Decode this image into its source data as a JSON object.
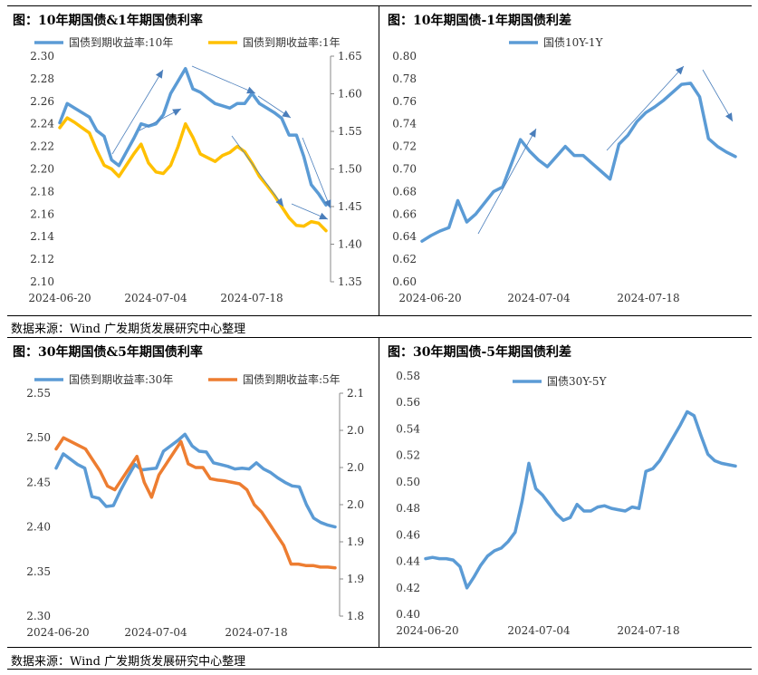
{
  "source_label": "数据来源：Wind  广发期货发展研究中心整理",
  "chart_data": [
    {
      "type": "line",
      "title": "图：10年期国债&1年期国债利率",
      "x_ticks": [
        "2024-06-20",
        "2024-07-04",
        "2024-07-18"
      ],
      "y_left": {
        "min": 2.1,
        "max": 2.3,
        "step": 0.02,
        "decimals": 2
      },
      "y_right": {
        "min": 1.35,
        "max": 1.65,
        "step": 0.05,
        "decimals": 2
      },
      "legend_position": "top",
      "series": [
        {
          "name": "国债到期收益率:10年",
          "axis": "left",
          "color": "#5B9BD5",
          "values": [
            2.241,
            2.258,
            2.254,
            2.25,
            2.246,
            2.234,
            2.229,
            2.208,
            2.203,
            2.215,
            2.227,
            2.24,
            2.238,
            2.24,
            2.248,
            2.267,
            2.278,
            2.289,
            2.271,
            2.268,
            2.263,
            2.258,
            2.256,
            2.254,
            2.258,
            2.258,
            2.267,
            2.258,
            2.254,
            2.25,
            2.245,
            2.23,
            2.23,
            2.211,
            2.186,
            2.178,
            2.168
          ]
        },
        {
          "name": "国债到期收益率:1年",
          "axis": "right",
          "color": "#FFC000",
          "values": [
            1.555,
            1.568,
            1.562,
            1.555,
            1.548,
            1.525,
            1.505,
            1.5,
            1.49,
            1.505,
            1.52,
            1.533,
            1.508,
            1.496,
            1.494,
            1.505,
            1.53,
            1.56,
            1.542,
            1.52,
            1.515,
            1.51,
            1.518,
            1.522,
            1.53,
            1.523,
            1.508,
            1.49,
            1.478,
            1.465,
            1.45,
            1.435,
            1.425,
            1.424,
            1.43,
            1.428,
            1.418
          ]
        }
      ]
    },
    {
      "type": "line",
      "title": "图：10年期国债-1年期国债利差",
      "x_ticks": [
        "2024-06-20",
        "2024-07-04",
        "2024-07-18"
      ],
      "y_left": {
        "min": 0.6,
        "max": 0.8,
        "step": 0.02,
        "decimals": 2
      },
      "legend_position": "top",
      "series": [
        {
          "name": "国债10Y-1Y",
          "axis": "left",
          "color": "#5B9BD5",
          "values": [
            0.636,
            0.641,
            0.645,
            0.648,
            0.672,
            0.653,
            0.66,
            0.67,
            0.68,
            0.684,
            0.705,
            0.726,
            0.716,
            0.708,
            0.702,
            0.711,
            0.72,
            0.712,
            0.712,
            0.705,
            0.698,
            0.691,
            0.722,
            0.73,
            0.742,
            0.75,
            0.755,
            0.761,
            0.768,
            0.775,
            0.776,
            0.764,
            0.727,
            0.72,
            0.715,
            0.711
          ]
        }
      ]
    },
    {
      "type": "line",
      "title": "图：30年期国债&5年期国债利率",
      "x_ticks": [
        "2024-06-20",
        "2024-07-04",
        "2024-07-18"
      ],
      "y_left": {
        "min": 2.3,
        "max": 2.55,
        "step": 0.05,
        "decimals": 2
      },
      "y_right": {
        "min": 1.8,
        "max": 2.1,
        "step": 0.05,
        "decimals": 1
      },
      "legend_position": "top",
      "series": [
        {
          "name": "国债到期收益率:30年",
          "axis": "left",
          "color": "#5B9BD5",
          "values": [
            2.466,
            2.482,
            2.476,
            2.47,
            2.466,
            2.434,
            2.432,
            2.423,
            2.424,
            2.441,
            2.456,
            2.47,
            2.464,
            2.465,
            2.466,
            2.485,
            2.491,
            2.497,
            2.504,
            2.491,
            2.485,
            2.484,
            2.472,
            2.47,
            2.468,
            2.465,
            2.466,
            2.465,
            2.472,
            2.465,
            2.461,
            2.455,
            2.45,
            2.446,
            2.445,
            2.425,
            2.41,
            2.405,
            2.402,
            2.4
          ]
        },
        {
          "name": "国债到期收益率:5年",
          "axis": "right",
          "color": "#ED7D31",
          "values": [
            2.025,
            2.04,
            2.035,
            2.03,
            2.025,
            2.01,
            1.995,
            1.975,
            1.97,
            1.985,
            2.0,
            2.015,
            1.98,
            1.96,
            1.99,
            2.005,
            2.02,
            2.035,
            2.005,
            2.0,
            2.0,
            1.985,
            1.983,
            1.982,
            1.98,
            1.978,
            1.97,
            1.95,
            1.94,
            1.925,
            1.91,
            1.895,
            1.87,
            1.87,
            1.868,
            1.868,
            1.866,
            1.866,
            1.865
          ]
        }
      ]
    },
    {
      "type": "line",
      "title": "图：30年期国债-5年期国债利差",
      "x_ticks": [
        "2024-06-20",
        "2024-07-04",
        "2024-07-18"
      ],
      "y_left": {
        "min": 0.4,
        "max": 0.58,
        "step": 0.02,
        "decimals": 2
      },
      "legend_position": "top",
      "series": [
        {
          "name": "国债30Y-5Y",
          "axis": "left",
          "color": "#5B9BD5",
          "values": [
            0.442,
            0.443,
            0.442,
            0.442,
            0.441,
            0.436,
            0.42,
            0.428,
            0.437,
            0.444,
            0.448,
            0.45,
            0.455,
            0.462,
            0.485,
            0.514,
            0.495,
            0.49,
            0.483,
            0.476,
            0.471,
            0.473,
            0.483,
            0.478,
            0.478,
            0.481,
            0.482,
            0.48,
            0.479,
            0.478,
            0.481,
            0.48,
            0.508,
            0.51,
            0.516,
            0.525,
            0.534,
            0.543,
            0.553,
            0.55,
            0.535,
            0.521,
            0.516,
            0.514,
            0.513,
            0.512
          ]
        }
      ]
    }
  ]
}
